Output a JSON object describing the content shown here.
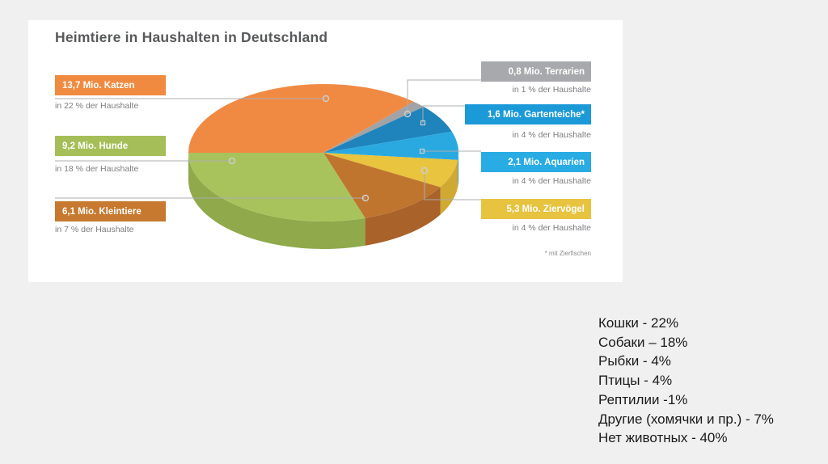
{
  "page": {
    "background": "#F0F0F1"
  },
  "panel": {
    "background": "#FFFFFF"
  },
  "chart_data": {
    "type": "pie",
    "title": "Heimtiere in Haushalten in Deutschland",
    "footnote": "* mit Zierfischen",
    "start_angle_deg": 180,
    "direction": "clockwise",
    "legend_position": "callout-labels-left-and-right",
    "values_unit": "Mio. Tiere / % der Haushalte",
    "slices": [
      {
        "id": "katzen",
        "animal": "Katzen",
        "count_mio": 13.7,
        "households_pct": 22,
        "label": "13,7 Mio. Katzen",
        "sublabel": "in 22 % der Haushalte",
        "box_color": "#F08A40",
        "color": "#F08A43",
        "side_color": "#D87832"
      },
      {
        "id": "terrarien",
        "animal": "Terrarien",
        "count_mio": 0.8,
        "households_pct": 1,
        "label": "0,8 Mio. Terrarien",
        "sublabel": "in 1 % der Haushalte",
        "box_color": "#A7A9AC",
        "color": "#A1A3A6",
        "side_color": "#8B8D90"
      },
      {
        "id": "gartenteiche",
        "animal": "Gartenteiche",
        "count_mio": 1.6,
        "households_pct": 4,
        "label": "1,6 Mio. Gartenteiche*",
        "sublabel": "in 4 % der Haushalte",
        "box_color": "#1B9AD7",
        "color": "#1F83BC",
        "side_color": "#1A6F9E"
      },
      {
        "id": "aquarien",
        "animal": "Aquarien",
        "count_mio": 2.1,
        "households_pct": 4,
        "label": "2,1 Mio. Aquarien",
        "sublabel": "in 4 % der Haushalte",
        "box_color": "#29ACE3",
        "color": "#29A9E0",
        "side_color": "#1E90C4"
      },
      {
        "id": "ziervogel",
        "animal": "Ziervögel",
        "count_mio": 5.3,
        "households_pct": 4,
        "label": "5,3 Mio. Ziervögel",
        "sublabel": "in 4 % der Haushalte",
        "box_color": "#E7C33F",
        "color": "#E9C43E",
        "side_color": "#D0A933"
      },
      {
        "id": "kleintiere",
        "animal": "Kleintiere",
        "count_mio": 6.1,
        "households_pct": 7,
        "label": "6,1 Mio. Kleintiere",
        "sublabel": "in 7 % der Haushalte",
        "box_color": "#C6792F",
        "color": "#C0752F",
        "side_color": "#A8622A"
      },
      {
        "id": "hunde",
        "animal": "Hunde",
        "count_mio": 9.2,
        "households_pct": 18,
        "label": "9,2 Mio. Hunde",
        "sublabel": "in 18 % der Haushalte",
        "box_color": "#A5BE58",
        "color": "#A8C35C",
        "side_color": "#8FA94B"
      }
    ]
  },
  "annotation_ru": {
    "lines": [
      "Кошки - 22%",
      "Собаки – 18%",
      "Рыбки - 4%",
      "Птицы - 4%",
      "Рептилии -1%",
      "Другие (хомячки и пр.) - 7%",
      "Нет животных - 40%"
    ]
  }
}
